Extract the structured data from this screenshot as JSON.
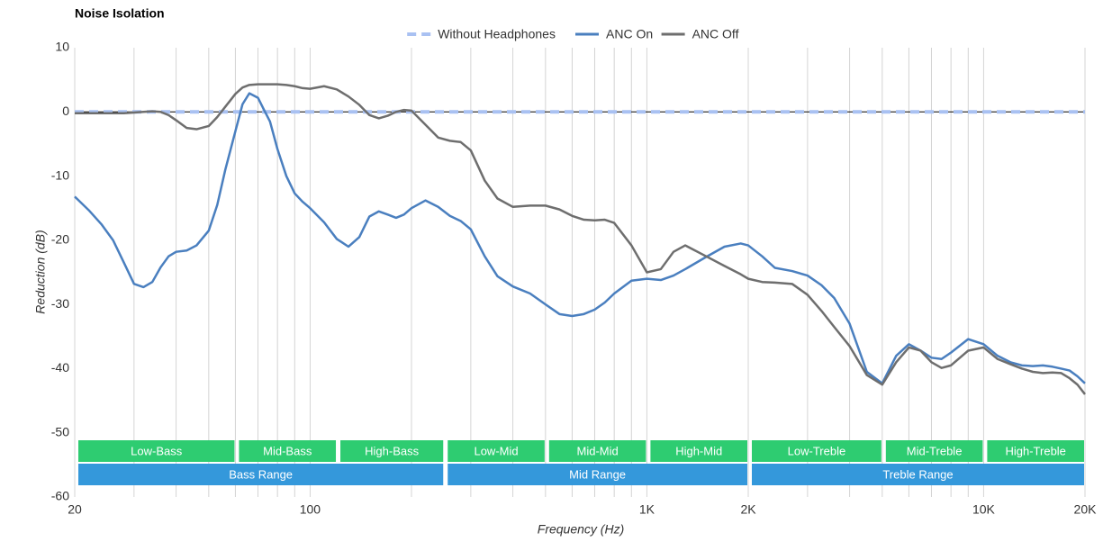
{
  "chart_data": {
    "type": "line",
    "title": "Noise Isolation",
    "xlabel": "Frequency (Hz)",
    "ylabel": "Reduction (dB)",
    "log_x": true,
    "legend": "top",
    "xlim": [
      20,
      20000
    ],
    "ylim": [
      -60,
      10
    ],
    "yticks": [
      10,
      0,
      -10,
      -20,
      -30,
      -40,
      -50,
      -60
    ],
    "xticks": [
      20,
      100,
      {
        "value": 1000,
        "label": "1K"
      },
      {
        "value": 2000,
        "label": "2K"
      },
      {
        "value": 10000,
        "label": "10K"
      },
      {
        "value": 20000,
        "label": "20K"
      }
    ],
    "xgrid": [
      30,
      40,
      50,
      60,
      70,
      80,
      90,
      200,
      300,
      400,
      500,
      600,
      700,
      800,
      900,
      3000,
      4000,
      5000,
      6000,
      7000,
      8000,
      9000
    ],
    "x": [
      20,
      22,
      24,
      26,
      28,
      30,
      32,
      34,
      36,
      38,
      40,
      43,
      46,
      50,
      53,
      56,
      60,
      63,
      66,
      70,
      73,
      76,
      80,
      85,
      90,
      95,
      100,
      110,
      120,
      130,
      140,
      150,
      160,
      170,
      180,
      190,
      200,
      220,
      240,
      260,
      280,
      300,
      330,
      360,
      400,
      450,
      500,
      550,
      600,
      650,
      700,
      750,
      800,
      900,
      1000,
      1100,
      1200,
      1300,
      1500,
      1700,
      1900,
      2000,
      2200,
      2400,
      2700,
      3000,
      3300,
      3600,
      4000,
      4500,
      5000,
      5500,
      6000,
      6500,
      7000,
      7500,
      8000,
      9000,
      10000,
      11000,
      12000,
      13000,
      14000,
      15000,
      16000,
      17000,
      18000,
      19000,
      20000
    ],
    "series": [
      {
        "name": "Without Headphones",
        "color": "#a9c1f2",
        "dashed": true,
        "x": [
          20,
          20000
        ],
        "values": [
          0,
          0
        ]
      },
      {
        "name": "ANC On",
        "color": "#4a7fbf",
        "values": [
          -13.2,
          -15.3,
          -17.5,
          -20,
          -23.5,
          -26.8,
          -27.3,
          -26.5,
          -24.2,
          -22.5,
          -21.8,
          -21.6,
          -20.8,
          -18.5,
          -14.5,
          -9,
          -3,
          1.2,
          2.9,
          2.2,
          0.3,
          -1.5,
          -5.8,
          -10,
          -12.7,
          -14,
          -15,
          -17.2,
          -19.8,
          -21,
          -19.5,
          -16.3,
          -15.5,
          -16,
          -16.5,
          -16,
          -15,
          -13.8,
          -14.8,
          -16.2,
          -17,
          -18.3,
          -22.5,
          -25.6,
          -27.2,
          -28.3,
          -30,
          -31.5,
          -31.8,
          -31.5,
          -30.8,
          -29.7,
          -28.3,
          -26.3,
          -26,
          -26.2,
          -25.5,
          -24.5,
          -22.6,
          -21,
          -20.5,
          -20.8,
          -22.5,
          -24.3,
          -24.8,
          -25.5,
          -27,
          -29,
          -33,
          -40.5,
          -42.3,
          -38,
          -36.2,
          -37.2,
          -38.3,
          -38.5,
          -37.5,
          -35.4,
          -36.2,
          -38,
          -39,
          -39.5,
          -39.6,
          -39.5,
          -39.7,
          -40,
          -40.3,
          -41.2,
          -42.3
        ]
      },
      {
        "name": "ANC Off",
        "color": "#6e6e6e",
        "values": [
          -0.2,
          -0.2,
          -0.2,
          -0.2,
          -0.2,
          -0.1,
          0,
          0.1,
          0,
          -0.5,
          -1.3,
          -2.5,
          -2.7,
          -2.2,
          -0.8,
          0.8,
          2.8,
          3.8,
          4.2,
          4.3,
          4.3,
          4.3,
          4.3,
          4.2,
          4,
          3.7,
          3.6,
          4,
          3.5,
          2.4,
          1.1,
          -0.5,
          -1,
          -0.6,
          0,
          0.3,
          0.2,
          -2,
          -4,
          -4.5,
          -4.7,
          -6,
          -10.7,
          -13.5,
          -14.8,
          -14.6,
          -14.6,
          -15.2,
          -16.2,
          -16.8,
          -16.9,
          -16.8,
          -17.3,
          -20.8,
          -25,
          -24.5,
          -21.8,
          -20.8,
          -22.5,
          -24,
          -25.3,
          -26,
          -26.5,
          -26.6,
          -26.8,
          -28.5,
          -31,
          -33.5,
          -36.5,
          -41,
          -42.5,
          -39,
          -36.7,
          -37.2,
          -39,
          -39.9,
          -39.5,
          -37.2,
          -36.7,
          -38.5,
          -39.3,
          -40,
          -40.5,
          -40.7,
          -40.6,
          -40.7,
          -41.5,
          -42.5,
          -44
        ]
      }
    ],
    "bands": [
      {
        "label": "Low-Bass",
        "start": 20,
        "end": 60,
        "color": "#2ecc71"
      },
      {
        "label": "Mid-Bass",
        "start": 60,
        "end": 120,
        "color": "#2ecc71"
      },
      {
        "label": "High-Bass",
        "start": 120,
        "end": 250,
        "color": "#2ecc71"
      },
      {
        "label": "Low-Mid",
        "start": 250,
        "end": 500,
        "color": "#2ecc71"
      },
      {
        "label": "Mid-Mid",
        "start": 500,
        "end": 1000,
        "color": "#2ecc71"
      },
      {
        "label": "High-Mid",
        "start": 1000,
        "end": 2000,
        "color": "#2ecc71"
      },
      {
        "label": "Low-Treble",
        "start": 2000,
        "end": 5000,
        "color": "#2ecc71"
      },
      {
        "label": "Mid-Treble",
        "start": 5000,
        "end": 10000,
        "color": "#2ecc71"
      },
      {
        "label": "High-Treble",
        "start": 10000,
        "end": 20000,
        "color": "#2ecc71"
      }
    ],
    "ranges": [
      {
        "label": "Bass Range",
        "start": 20,
        "end": 250,
        "color": "#3498db"
      },
      {
        "label": "Mid Range",
        "start": 250,
        "end": 2000,
        "color": "#3498db"
      },
      {
        "label": "Treble Range",
        "start": 2000,
        "end": 20000,
        "color": "#3498db"
      }
    ]
  }
}
